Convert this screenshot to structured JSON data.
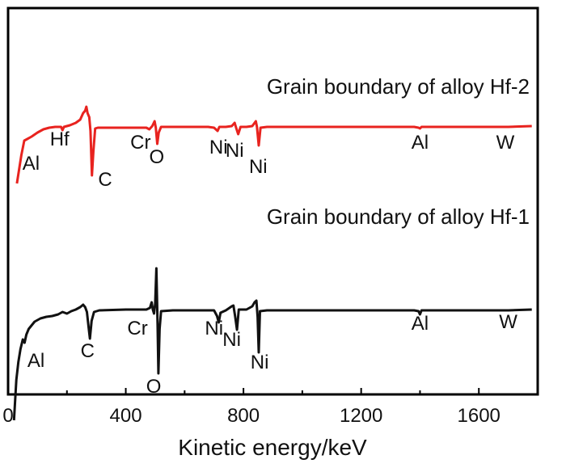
{
  "chart_data": {
    "type": "line",
    "xlabel": "Kinetic energy/keV",
    "ylabel": "",
    "xlim": [
      0,
      1800
    ],
    "x_ticks": [
      0,
      400,
      800,
      1200,
      1600
    ],
    "grid": false,
    "series": [
      {
        "name": "Grain boundary of alloy Hf-2",
        "color": "#e8231f",
        "points": [
          [
            30,
            5
          ],
          [
            45,
            40
          ],
          [
            55,
            58
          ],
          [
            65,
            60
          ],
          [
            80,
            63
          ],
          [
            100,
            68
          ],
          [
            120,
            72
          ],
          [
            140,
            74
          ],
          [
            160,
            75
          ],
          [
            180,
            75
          ],
          [
            185,
            71
          ],
          [
            190,
            75
          ],
          [
            210,
            77
          ],
          [
            230,
            80
          ],
          [
            245,
            84
          ],
          [
            255,
            92
          ],
          [
            262,
            95
          ],
          [
            266,
            100
          ],
          [
            270,
            92
          ],
          [
            276,
            87
          ],
          [
            280,
            70
          ],
          [
            285,
            15
          ],
          [
            290,
            45
          ],
          [
            296,
            73
          ],
          [
            305,
            74
          ],
          [
            350,
            74
          ],
          [
            400,
            74
          ],
          [
            450,
            74
          ],
          [
            470,
            74
          ],
          [
            480,
            72
          ],
          [
            485,
            74
          ],
          [
            490,
            76
          ],
          [
            498,
            82
          ],
          [
            502,
            74
          ],
          [
            507,
            54
          ],
          [
            512,
            68
          ],
          [
            520,
            75
          ],
          [
            560,
            75
          ],
          [
            600,
            75
          ],
          [
            650,
            75
          ],
          [
            680,
            75
          ],
          [
            700,
            74
          ],
          [
            712,
            70
          ],
          [
            718,
            75
          ],
          [
            740,
            75
          ],
          [
            760,
            76
          ],
          [
            770,
            80
          ],
          [
            775,
            74
          ],
          [
            782,
            66
          ],
          [
            790,
            75
          ],
          [
            810,
            75
          ],
          [
            830,
            76
          ],
          [
            838,
            80
          ],
          [
            842,
            82
          ],
          [
            846,
            75
          ],
          [
            852,
            52
          ],
          [
            858,
            74
          ],
          [
            880,
            75
          ],
          [
            1000,
            75
          ],
          [
            1200,
            75
          ],
          [
            1380,
            75
          ],
          [
            1395,
            74
          ],
          [
            1400,
            73
          ],
          [
            1405,
            75
          ],
          [
            1500,
            75
          ],
          [
            1600,
            75
          ],
          [
            1700,
            75
          ],
          [
            1780,
            76
          ]
        ]
      },
      {
        "name": "Grain boundary of alloy Hf-1",
        "color": "#111111",
        "points": [
          [
            20,
            -168
          ],
          [
            28,
            -118
          ],
          [
            35,
            -96
          ],
          [
            42,
            -80
          ],
          [
            50,
            -68
          ],
          [
            56,
            -72
          ],
          [
            62,
            -62
          ],
          [
            70,
            -55
          ],
          [
            90,
            -46
          ],
          [
            110,
            -42
          ],
          [
            130,
            -40
          ],
          [
            150,
            -39
          ],
          [
            170,
            -37
          ],
          [
            185,
            -34
          ],
          [
            200,
            -36
          ],
          [
            215,
            -33
          ],
          [
            230,
            -31
          ],
          [
            245,
            -28
          ],
          [
            255,
            -25
          ],
          [
            262,
            -28
          ],
          [
            268,
            -34
          ],
          [
            274,
            -54
          ],
          [
            278,
            -67
          ],
          [
            284,
            -45
          ],
          [
            292,
            -34
          ],
          [
            310,
            -32
          ],
          [
            400,
            -31
          ],
          [
            470,
            -31
          ],
          [
            482,
            -29
          ],
          [
            488,
            -22
          ],
          [
            492,
            -31
          ],
          [
            496,
            -36
          ],
          [
            500,
            -24
          ],
          [
            504,
            20
          ],
          [
            508,
            -50
          ],
          [
            511,
            -110
          ],
          [
            515,
            -55
          ],
          [
            520,
            -33
          ],
          [
            560,
            -32
          ],
          [
            650,
            -32
          ],
          [
            700,
            -32
          ],
          [
            710,
            -39
          ],
          [
            716,
            -47
          ],
          [
            722,
            -35
          ],
          [
            740,
            -32
          ],
          [
            760,
            -27
          ],
          [
            766,
            -26
          ],
          [
            772,
            -40
          ],
          [
            778,
            -56
          ],
          [
            784,
            -31
          ],
          [
            810,
            -31
          ],
          [
            830,
            -27
          ],
          [
            838,
            -22
          ],
          [
            844,
            -20
          ],
          [
            848,
            -40
          ],
          [
            852,
            -84
          ],
          [
            856,
            -33
          ],
          [
            880,
            -32
          ],
          [
            1000,
            -32
          ],
          [
            1200,
            -32
          ],
          [
            1380,
            -32
          ],
          [
            1395,
            -33
          ],
          [
            1400,
            -37
          ],
          [
            1405,
            -32
          ],
          [
            1500,
            -32
          ],
          [
            1600,
            -32
          ],
          [
            1700,
            -32
          ],
          [
            1780,
            -31
          ]
        ]
      }
    ],
    "annotations": [
      {
        "text": "Hf",
        "series": 0,
        "x": 175,
        "y": 52
      },
      {
        "text": "Al",
        "series": 0,
        "x": 78,
        "y": 22
      },
      {
        "text": "C",
        "series": 0,
        "x": 330,
        "y": 2
      },
      {
        "text": "Cr",
        "series": 0,
        "x": 450,
        "y": 48
      },
      {
        "text": "O",
        "series": 0,
        "x": 505,
        "y": 30
      },
      {
        "text": "Ni",
        "series": 0,
        "x": 715,
        "y": 42
      },
      {
        "text": "Ni",
        "series": 0,
        "x": 770,
        "y": 38
      },
      {
        "text": "Ni",
        "series": 0,
        "x": 850,
        "y": 18
      },
      {
        "text": "Al",
        "series": 0,
        "x": 1400,
        "y": 48
      },
      {
        "text": "W",
        "series": 0,
        "x": 1690,
        "y": 48
      },
      {
        "text": "Al",
        "series": 1,
        "x": 95,
        "y": -102
      },
      {
        "text": "C",
        "series": 1,
        "x": 270,
        "y": -90
      },
      {
        "text": "Cr",
        "series": 1,
        "x": 440,
        "y": -62
      },
      {
        "text": "O",
        "series": 1,
        "x": 495,
        "y": -134
      },
      {
        "text": "Ni",
        "series": 1,
        "x": 700,
        "y": -62
      },
      {
        "text": "Ni",
        "series": 1,
        "x": 760,
        "y": -76
      },
      {
        "text": "Ni",
        "series": 1,
        "x": 855,
        "y": -104
      },
      {
        "text": "Al",
        "series": 1,
        "x": 1400,
        "y": -56
      },
      {
        "text": "W",
        "series": 1,
        "x": 1700,
        "y": -54
      }
    ]
  }
}
